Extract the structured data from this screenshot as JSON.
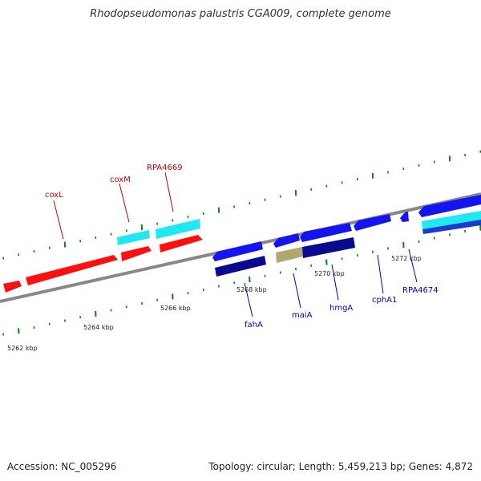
{
  "title": "Rhodopseudomonas palustris CGA009, complete genome",
  "footer": {
    "accession": "Accession: NC_005296",
    "topology": "Topology: circular; Length: 5,459,213 bp; Genes: 4,872"
  },
  "colors": {
    "forward_cds": "#ff1010",
    "forward_rna": "#20e8f0",
    "reverse_cds": "#1414f0",
    "reverse_rna": "#0a0a90",
    "reverse_other": "#b0a870",
    "backbone": "#888888",
    "tick": "#108010",
    "forward_label": "#cc0000",
    "reverse_label": "#0000bb"
  },
  "scale_labels": [
    "5262 kbp",
    "5264 kbp",
    "5266 kbp",
    "5268 kbp",
    "5270 kbp",
    "5272 kbp"
  ],
  "gene_labels": {
    "forward": [
      "coxL",
      "coxM",
      "RPA4669"
    ],
    "reverse": [
      "fahA",
      "maiA",
      "hmgA",
      "cphA1",
      "RPA4674"
    ]
  }
}
